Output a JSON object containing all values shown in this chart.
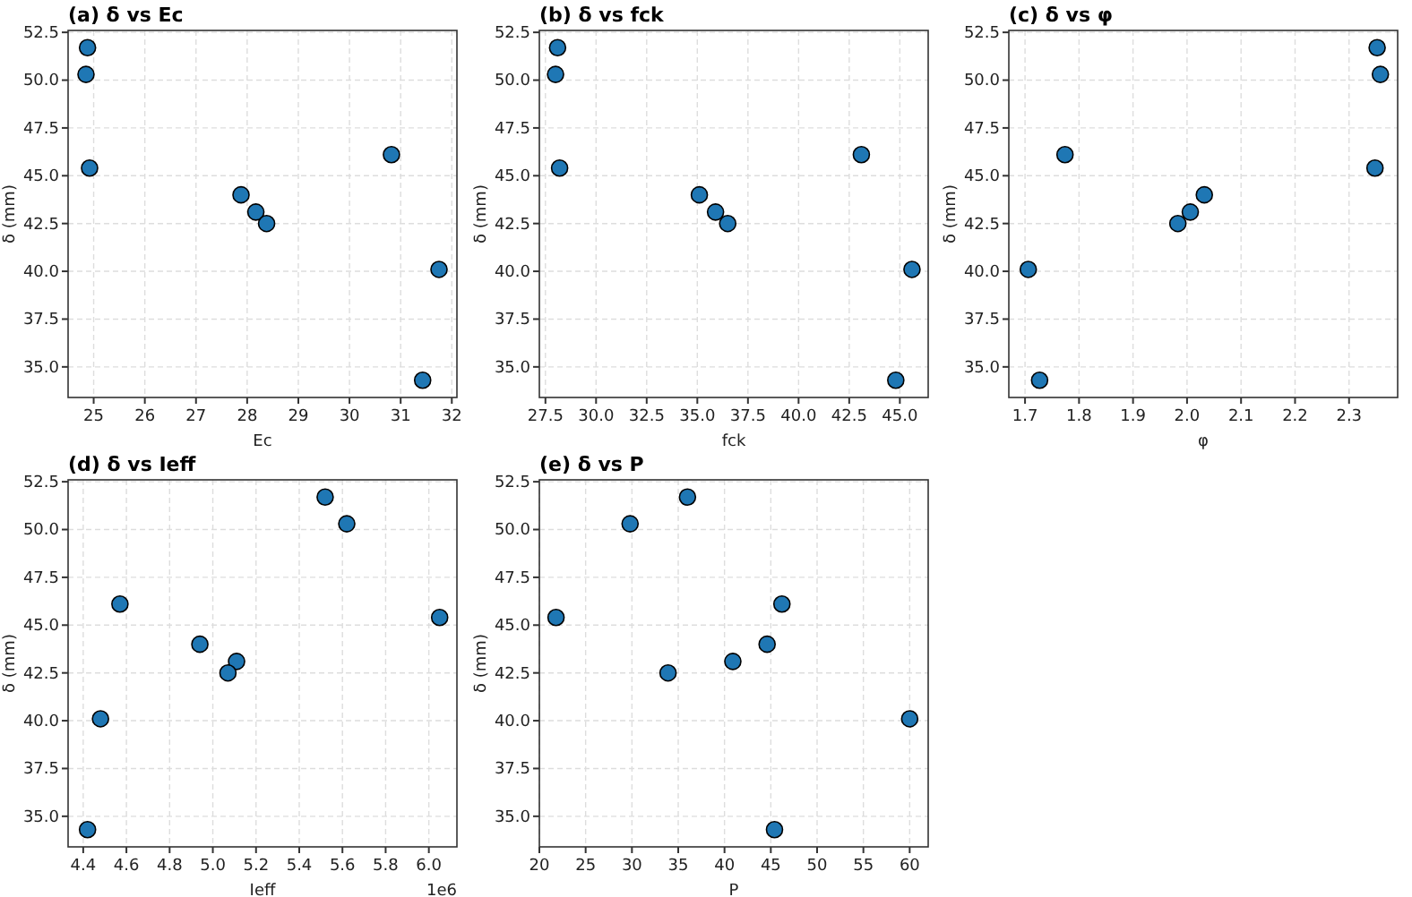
{
  "chart_data": [
    {
      "type": "scatter",
      "title": "(a) δ vs Ec",
      "xlabel": "Ec",
      "ylabel": "δ (mm)",
      "grid": true,
      "marker": "circle",
      "xlim": [
        24.5,
        32.1
      ],
      "xticks": [
        25,
        26,
        27,
        28,
        29,
        30,
        31,
        32
      ],
      "ylim": [
        33.4,
        52.6
      ],
      "yticks": [
        {
          "value": 35,
          "label": "35.0"
        },
        37.5,
        {
          "value": 40,
          "label": "40.0"
        },
        42.5,
        {
          "value": 45,
          "label": "45.0"
        },
        47.5,
        {
          "value": 50,
          "label": "50.0"
        },
        52.5
      ],
      "series": [
        {
          "color": "#1f77b4",
          "x": [
            24.88,
            24.85,
            24.92,
            27.88,
            28.17,
            28.38,
            30.82,
            31.75,
            31.43
          ],
          "values": [
            51.7,
            50.3,
            45.4,
            44.0,
            43.1,
            42.5,
            46.1,
            40.1,
            34.3
          ]
        }
      ]
    },
    {
      "type": "scatter",
      "title": "(b) δ vs fck",
      "xlabel": "fck",
      "ylabel": "δ (mm)",
      "grid": true,
      "marker": "circle",
      "xlim": [
        27.2,
        46.4
      ],
      "xticks": [
        27.5,
        {
          "value": 30,
          "label": "30.0"
        },
        32.5,
        {
          "value": 35,
          "label": "35.0"
        },
        37.5,
        {
          "value": 40,
          "label": "40.0"
        },
        42.5,
        {
          "value": 45,
          "label": "45.0"
        }
      ],
      "ylim": [
        33.4,
        52.6
      ],
      "yticks": [
        {
          "value": 35,
          "label": "35.0"
        },
        37.5,
        {
          "value": 40,
          "label": "40.0"
        },
        42.5,
        {
          "value": 45,
          "label": "45.0"
        },
        47.5,
        {
          "value": 50,
          "label": "50.0"
        },
        52.5
      ],
      "series": [
        {
          "color": "#1f77b4",
          "x": [
            28.1,
            28.0,
            28.2,
            35.1,
            35.9,
            36.5,
            43.1,
            45.6,
            44.8
          ],
          "values": [
            51.7,
            50.3,
            45.4,
            44.0,
            43.1,
            42.5,
            46.1,
            40.1,
            34.3
          ]
        }
      ]
    },
    {
      "type": "scatter",
      "title": "(c) δ vs φ",
      "xlabel": "φ",
      "ylabel": "δ (mm)",
      "grid": true,
      "marker": "circle",
      "xlim": [
        1.67,
        2.39
      ],
      "xticks": [
        1.7,
        1.8,
        1.9,
        {
          "value": 2,
          "label": "2.0"
        },
        2.1,
        2.2,
        2.3
      ],
      "ylim": [
        33.4,
        52.6
      ],
      "yticks": [
        {
          "value": 35,
          "label": "35.0"
        },
        37.5,
        {
          "value": 40,
          "label": "40.0"
        },
        42.5,
        {
          "value": 45,
          "label": "45.0"
        },
        47.5,
        {
          "value": 50,
          "label": "50.0"
        },
        52.5
      ],
      "series": [
        {
          "color": "#1f77b4",
          "x": [
            2.352,
            2.358,
            2.348,
            2.032,
            2.006,
            1.983,
            1.774,
            1.706,
            1.727
          ],
          "values": [
            51.7,
            50.3,
            45.4,
            44.0,
            43.1,
            42.5,
            46.1,
            40.1,
            34.3
          ]
        }
      ]
    },
    {
      "type": "scatter",
      "title": "(d) δ vs Ieff",
      "xlabel": "Ieff",
      "ylabel": "δ (mm)",
      "annotations": [
        "1e6"
      ],
      "grid": true,
      "marker": "circle",
      "xlim": [
        4.33,
        6.13
      ],
      "xticks": [
        4.4,
        4.6,
        4.8,
        {
          "value": 5,
          "label": "5.0"
        },
        5.2,
        5.4,
        5.6,
        5.8,
        {
          "value": 6,
          "label": "6.0"
        }
      ],
      "ylim": [
        33.4,
        52.6
      ],
      "yticks": [
        {
          "value": 35,
          "label": "35.0"
        },
        37.5,
        {
          "value": 40,
          "label": "40.0"
        },
        42.5,
        {
          "value": 45,
          "label": "45.0"
        },
        47.5,
        {
          "value": 50,
          "label": "50.0"
        },
        52.5
      ],
      "series": [
        {
          "color": "#1f77b4",
          "x": [
            5.52,
            5.62,
            6.05,
            4.94,
            5.11,
            5.07,
            4.57,
            4.48,
            4.42
          ],
          "values": [
            51.7,
            50.3,
            45.4,
            44.0,
            43.1,
            42.5,
            46.1,
            40.1,
            34.3
          ]
        }
      ]
    },
    {
      "type": "scatter",
      "title": "(e) δ vs P",
      "xlabel": "P",
      "ylabel": "δ (mm)",
      "grid": true,
      "marker": "circle",
      "xlim": [
        20,
        62
      ],
      "xticks": [
        20,
        25,
        30,
        35,
        40,
        45,
        50,
        55,
        60
      ],
      "ylim": [
        33.4,
        52.6
      ],
      "yticks": [
        {
          "value": 35,
          "label": "35.0"
        },
        37.5,
        {
          "value": 40,
          "label": "40.0"
        },
        42.5,
        {
          "value": 45,
          "label": "45.0"
        },
        47.5,
        {
          "value": 50,
          "label": "50.0"
        },
        52.5
      ],
      "series": [
        {
          "color": "#1f77b4",
          "x": [
            36.0,
            29.8,
            21.8,
            44.6,
            40.9,
            33.9,
            46.2,
            60.0,
            45.4
          ],
          "values": [
            51.7,
            50.3,
            45.4,
            44.0,
            43.1,
            42.5,
            46.1,
            40.1,
            34.3
          ]
        }
      ]
    }
  ]
}
